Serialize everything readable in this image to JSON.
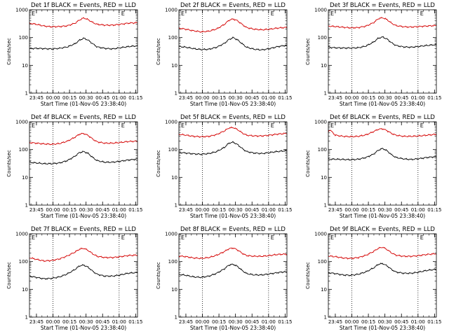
{
  "chart_data": [
    {
      "type": "line",
      "title": "Det 1f BLACK = Events, RED = LLD",
      "xlabel": "Start Time (01-Nov-05 23:38:40)",
      "ylabel": "Counts/sec",
      "yscale": "log",
      "ylim": [
        1,
        1000
      ],
      "yticks": [
        "1",
        "10",
        "100",
        "1000"
      ],
      "xticks": [
        "23:45",
        "00:00",
        "00:15",
        "00:30",
        "00:45",
        "01:00",
        "01:15"
      ],
      "flags": [
        "E",
        "E"
      ],
      "vlines": [
        "00:00",
        "01:00"
      ],
      "series": [
        {
          "color": "#000000",
          "x": [
            "23:38",
            "23:45",
            "23:52",
            "23:59",
            "00:06",
            "00:13",
            "00:20",
            "00:24",
            "00:28",
            "00:32",
            "00:36",
            "00:40",
            "00:47",
            "00:54",
            "01:01",
            "01:08",
            "01:15"
          ],
          "y": [
            40,
            41,
            40,
            39,
            41,
            46,
            60,
            80,
            95,
            80,
            60,
            46,
            41,
            39,
            43,
            47,
            50
          ]
        },
        {
          "color": "#d40000",
          "x": [
            "23:38",
            "23:45",
            "23:52",
            "23:59",
            "00:06",
            "00:13",
            "00:20",
            "00:24",
            "00:28",
            "00:32",
            "00:36",
            "00:40",
            "00:47",
            "00:54",
            "01:01",
            "01:08",
            "01:15"
          ],
          "y": [
            330,
            300,
            260,
            245,
            250,
            265,
            330,
            430,
            510,
            440,
            350,
            300,
            280,
            280,
            300,
            330,
            340
          ]
        }
      ]
    },
    {
      "type": "line",
      "title": "Det 2f BLACK = Events, RED = LLD",
      "xlabel": "Start Time (01-Nov-05 23:38:40)",
      "ylabel": "Counts/sec",
      "yscale": "log",
      "ylim": [
        1,
        1000
      ],
      "yticks": [
        "1",
        "10",
        "100",
        "1000"
      ],
      "xticks": [
        "23:45",
        "00:00",
        "00:15",
        "00:30",
        "00:45",
        "01:00",
        "01:15"
      ],
      "flags": [
        "E",
        "E"
      ],
      "vlines": [
        "00:00",
        "01:00"
      ],
      "series": [
        {
          "color": "#000000",
          "x": [
            "23:38",
            "23:45",
            "23:52",
            "23:59",
            "00:06",
            "00:13",
            "00:20",
            "00:24",
            "00:28",
            "00:32",
            "00:36",
            "00:40",
            "00:47",
            "00:54",
            "01:01",
            "01:08",
            "01:15"
          ],
          "y": [
            48,
            45,
            40,
            37,
            38,
            45,
            62,
            85,
            100,
            82,
            60,
            45,
            38,
            36,
            40,
            47,
            52
          ]
        },
        {
          "color": "#d40000",
          "x": [
            "23:38",
            "23:45",
            "23:52",
            "23:59",
            "00:06",
            "00:13",
            "00:20",
            "00:24",
            "00:28",
            "00:32",
            "00:36",
            "00:40",
            "00:47",
            "00:54",
            "01:01",
            "01:08",
            "01:15"
          ],
          "y": [
            220,
            200,
            175,
            160,
            170,
            205,
            300,
            420,
            470,
            400,
            300,
            230,
            200,
            190,
            200,
            220,
            230
          ]
        }
      ]
    },
    {
      "type": "line",
      "title": "Det 3f BLACK = Events, RED = LLD",
      "xlabel": "Start Time (01-Nov-05 23:38:40)",
      "ylabel": "Counts/sec",
      "yscale": "log",
      "ylim": [
        1,
        1000
      ],
      "yticks": [
        "1",
        "10",
        "100",
        "1000"
      ],
      "xticks": [
        "23:45",
        "00:00",
        "00:15",
        "00:30",
        "00:45",
        "01:00",
        "01:15"
      ],
      "flags": [
        "E",
        "E"
      ],
      "vlines": [
        "00:00",
        "01:00"
      ],
      "series": [
        {
          "color": "#000000",
          "x": [
            "23:38",
            "23:45",
            "23:52",
            "23:59",
            "00:06",
            "00:13",
            "00:20",
            "00:24",
            "00:28",
            "00:32",
            "00:36",
            "00:40",
            "00:47",
            "00:54",
            "01:01",
            "01:08",
            "01:15"
          ],
          "y": [
            45,
            43,
            42,
            42,
            43,
            50,
            70,
            95,
            105,
            88,
            65,
            52,
            46,
            45,
            48,
            52,
            55
          ]
        },
        {
          "color": "#d40000",
          "x": [
            "23:38",
            "23:45",
            "23:52",
            "23:59",
            "00:06",
            "00:13",
            "00:20",
            "00:24",
            "00:28",
            "00:32",
            "00:36",
            "00:40",
            "00:47",
            "00:54",
            "01:01",
            "01:08",
            "01:15"
          ],
          "y": [
            260,
            250,
            235,
            225,
            230,
            260,
            350,
            480,
            520,
            440,
            330,
            270,
            245,
            240,
            250,
            260,
            270
          ]
        }
      ]
    },
    {
      "type": "line",
      "title": "Det 4f BLACK = Events, RED = LLD",
      "xlabel": "Start Time (01-Nov-05 23:38:40)",
      "ylabel": "Counts/sec",
      "yscale": "log",
      "ylim": [
        1,
        1000
      ],
      "yticks": [
        "1",
        "10",
        "100",
        "1000"
      ],
      "xticks": [
        "23:45",
        "00:00",
        "00:15",
        "00:30",
        "00:45",
        "01:00",
        "01:15"
      ],
      "flags": [
        "E",
        "E"
      ],
      "vlines": [
        "00:00",
        "01:00"
      ],
      "series": [
        {
          "color": "#000000",
          "x": [
            "23:38",
            "23:45",
            "23:52",
            "23:59",
            "00:06",
            "00:13",
            "00:20",
            "00:24",
            "00:28",
            "00:32",
            "00:36",
            "00:40",
            "00:47",
            "00:54",
            "01:01",
            "01:08",
            "01:15"
          ],
          "y": [
            35,
            33,
            31,
            31,
            33,
            40,
            58,
            78,
            85,
            72,
            52,
            40,
            35,
            35,
            38,
            42,
            45
          ]
        },
        {
          "color": "#d40000",
          "x": [
            "23:38",
            "23:45",
            "23:52",
            "23:59",
            "00:06",
            "00:13",
            "00:20",
            "00:24",
            "00:28",
            "00:32",
            "00:36",
            "00:40",
            "00:47",
            "00:54",
            "01:01",
            "01:08",
            "01:15"
          ],
          "y": [
            180,
            170,
            160,
            155,
            165,
            200,
            280,
            360,
            380,
            320,
            240,
            190,
            170,
            170,
            180,
            195,
            200
          ]
        }
      ]
    },
    {
      "type": "line",
      "title": "Det 5f BLACK = Events, RED = LLD",
      "xlabel": "Start Time (01-Nov-05 23:38:40)",
      "ylabel": "Counts/sec",
      "yscale": "log",
      "ylim": [
        1,
        1000
      ],
      "yticks": [
        "1",
        "10",
        "100",
        "1000"
      ],
      "xticks": [
        "23:45",
        "00:00",
        "00:15",
        "00:30",
        "00:45",
        "01:00",
        "01:15"
      ],
      "flags": [
        "E",
        "E"
      ],
      "vlines": [
        "00:00",
        "01:00"
      ],
      "series": [
        {
          "color": "#000000",
          "x": [
            "23:38",
            "23:45",
            "23:52",
            "23:59",
            "00:06",
            "00:13",
            "00:20",
            "00:24",
            "00:28",
            "00:32",
            "00:36",
            "00:40",
            "00:47",
            "00:54",
            "01:01",
            "01:08",
            "01:15"
          ],
          "y": [
            80,
            75,
            70,
            68,
            72,
            85,
            120,
            170,
            185,
            150,
            110,
            85,
            75,
            72,
            78,
            85,
            90
          ]
        },
        {
          "color": "#d40000",
          "x": [
            "23:38",
            "23:45",
            "23:52",
            "23:59",
            "00:06",
            "00:13",
            "00:20",
            "00:24",
            "00:28",
            "00:32",
            "00:36",
            "00:40",
            "00:47",
            "00:54",
            "01:01",
            "01:08",
            "01:15"
          ],
          "y": [
            360,
            330,
            300,
            290,
            300,
            350,
            470,
            600,
            620,
            520,
            400,
            330,
            310,
            310,
            330,
            360,
            380
          ]
        }
      ]
    },
    {
      "type": "line",
      "title": "Det 6f BLACK = Events, RED = LLD",
      "xlabel": "Start Time (01-Nov-05 23:38:40)",
      "ylabel": "Counts/sec",
      "yscale": "log",
      "ylim": [
        1,
        1000
      ],
      "yticks": [
        "1",
        "10",
        "100",
        "1000"
      ],
      "xticks": [
        "23:45",
        "00:00",
        "00:15",
        "00:30",
        "00:45",
        "01:00",
        "01:15"
      ],
      "flags": [
        "E",
        "E"
      ],
      "vlines": [
        "00:00",
        "01:00"
      ],
      "series": [
        {
          "color": "#000000",
          "x": [
            "23:38",
            "23:45",
            "23:52",
            "23:59",
            "00:06",
            "00:13",
            "00:20",
            "00:24",
            "00:28",
            "00:32",
            "00:36",
            "00:40",
            "00:47",
            "00:54",
            "01:01",
            "01:08",
            "01:15"
          ],
          "y": [
            45,
            45,
            44,
            43,
            45,
            52,
            70,
            95,
            110,
            90,
            65,
            52,
            46,
            44,
            47,
            52,
            55
          ]
        },
        {
          "color": "#d40000",
          "x": [
            "23:38",
            "23:40",
            "23:45",
            "23:52",
            "23:59",
            "00:06",
            "00:13",
            "00:20",
            "00:24",
            "00:28",
            "00:32",
            "00:36",
            "00:40",
            "00:47",
            "00:54",
            "01:01",
            "01:08",
            "01:15"
          ],
          "y": [
            400,
            520,
            330,
            300,
            290,
            300,
            340,
            450,
            540,
            560,
            480,
            380,
            330,
            300,
            300,
            310,
            330,
            350
          ]
        }
      ]
    },
    {
      "type": "line",
      "title": "Det 7f BLACK = Events, RED = LLD",
      "xlabel": "Start Time (01-Nov-05 23:38:40)",
      "ylabel": "Counts/sec",
      "yscale": "log",
      "ylim": [
        1,
        1000
      ],
      "yticks": [
        "1",
        "10",
        "100",
        "1000"
      ],
      "xticks": [
        "23:45",
        "00:00",
        "00:15",
        "00:30",
        "00:45",
        "01:00",
        "01:15"
      ],
      "flags": [
        "E",
        "E"
      ],
      "vlines": [
        "00:00",
        "01:00"
      ],
      "series": [
        {
          "color": "#000000",
          "x": [
            "23:38",
            "23:45",
            "23:52",
            "23:59",
            "00:06",
            "00:13",
            "00:20",
            "00:24",
            "00:28",
            "00:32",
            "00:36",
            "00:40",
            "00:47",
            "00:54",
            "01:01",
            "01:08",
            "01:15"
          ],
          "y": [
            30,
            27,
            24,
            25,
            28,
            36,
            52,
            70,
            75,
            62,
            45,
            35,
            30,
            30,
            33,
            38,
            40
          ]
        },
        {
          "color": "#d40000",
          "x": [
            "23:38",
            "23:45",
            "23:52",
            "23:59",
            "00:06",
            "00:13",
            "00:20",
            "00:24",
            "00:28",
            "00:32",
            "00:36",
            "00:40",
            "00:47",
            "00:54",
            "01:01",
            "01:08",
            "01:15"
          ],
          "y": [
            140,
            120,
            105,
            110,
            125,
            160,
            220,
            280,
            300,
            250,
            190,
            155,
            140,
            140,
            150,
            165,
            170
          ]
        }
      ]
    },
    {
      "type": "line",
      "title": "Det 8f BLACK = Events, RED = LLD",
      "xlabel": "Start Time (01-Nov-05 23:38:40)",
      "ylabel": "Counts/sec",
      "yscale": "log",
      "ylim": [
        1,
        1000
      ],
      "yticks": [
        "1",
        "10",
        "100",
        "1000"
      ],
      "xticks": [
        "23:45",
        "00:00",
        "00:15",
        "00:30",
        "00:45",
        "01:00",
        "01:15"
      ],
      "flags": [
        "E",
        "E"
      ],
      "vlines": [
        "00:00",
        "01:00"
      ],
      "series": [
        {
          "color": "#000000",
          "x": [
            "23:38",
            "23:45",
            "23:52",
            "23:59",
            "00:06",
            "00:13",
            "00:20",
            "00:24",
            "00:28",
            "00:32",
            "00:36",
            "00:40",
            "00:47",
            "00:54",
            "01:01",
            "01:08",
            "01:15"
          ],
          "y": [
            35,
            32,
            28,
            27,
            30,
            38,
            55,
            75,
            80,
            66,
            48,
            37,
            33,
            33,
            36,
            40,
            43
          ]
        },
        {
          "color": "#d40000",
          "x": [
            "23:38",
            "23:45",
            "23:52",
            "23:59",
            "00:06",
            "00:13",
            "00:20",
            "00:24",
            "00:28",
            "00:32",
            "00:36",
            "00:40",
            "00:47",
            "00:54",
            "01:01",
            "01:08",
            "01:15"
          ],
          "y": [
            160,
            150,
            135,
            130,
            140,
            170,
            230,
            290,
            310,
            260,
            200,
            165,
            155,
            155,
            165,
            180,
            185
          ]
        }
      ]
    },
    {
      "type": "line",
      "title": "Det 9f BLACK = Events, RED = LLD",
      "xlabel": "Start Time (01-Nov-05 23:38:40)",
      "ylabel": "Counts/sec",
      "yscale": "log",
      "ylim": [
        1,
        1000
      ],
      "yticks": [
        "1",
        "10",
        "100",
        "1000"
      ],
      "xticks": [
        "23:45",
        "00:00",
        "00:15",
        "00:30",
        "00:45",
        "01:00",
        "01:15"
      ],
      "flags": [
        "E",
        "E"
      ],
      "vlines": [
        "00:00",
        "01:00"
      ],
      "series": [
        {
          "color": "#000000",
          "x": [
            "23:38",
            "23:45",
            "23:52",
            "23:59",
            "00:06",
            "00:13",
            "00:20",
            "00:24",
            "00:28",
            "00:32",
            "00:36",
            "00:40",
            "00:47",
            "00:54",
            "01:01",
            "01:08",
            "01:15"
          ],
          "y": [
            40,
            37,
            33,
            32,
            35,
            43,
            60,
            80,
            85,
            70,
            52,
            42,
            38,
            38,
            42,
            48,
            52
          ]
        },
        {
          "color": "#d40000",
          "x": [
            "23:38",
            "23:45",
            "23:52",
            "23:59",
            "00:06",
            "00:13",
            "00:20",
            "00:24",
            "00:28",
            "00:32",
            "00:36",
            "00:40",
            "00:47",
            "00:54",
            "01:01",
            "01:08",
            "01:15"
          ],
          "y": [
            160,
            150,
            135,
            130,
            140,
            170,
            235,
            300,
            330,
            270,
            205,
            170,
            155,
            155,
            165,
            180,
            190
          ]
        }
      ]
    }
  ]
}
